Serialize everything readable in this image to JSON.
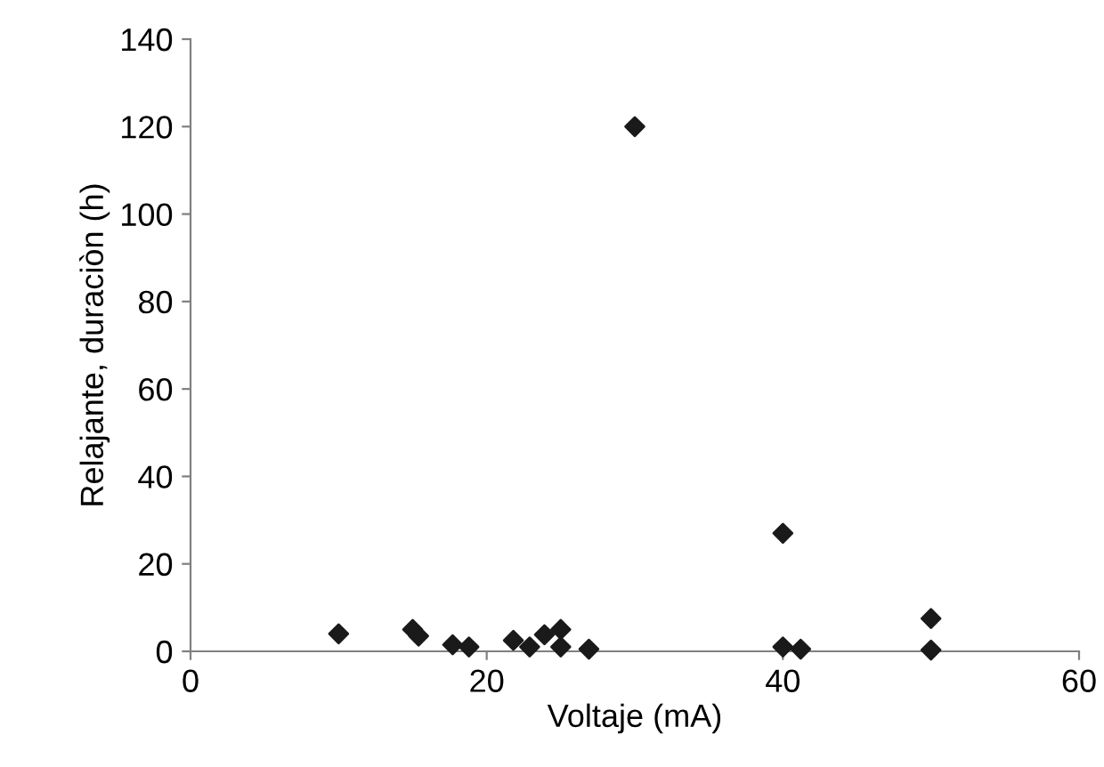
{
  "chart_data": {
    "type": "scatter",
    "xlabel": "Voltaje (mA)",
    "ylabel": "Relajante, duraciòn (h)",
    "x": [
      10,
      15,
      15.4,
      17.7,
      18.8,
      21.8,
      22.9,
      23.9,
      25,
      25,
      26.9,
      30,
      40,
      40,
      41.2,
      50,
      50
    ],
    "series": [
      {
        "color": "#1a1a1a",
        "values": [
          4,
          5,
          3.5,
          1.5,
          1,
          2.5,
          1,
          3.8,
          5,
          1,
          0.5,
          120,
          27,
          1,
          0.5,
          7.5,
          0.3
        ]
      }
    ],
    "xlim": [
      0,
      60
    ],
    "xticks": [
      0,
      20,
      40,
      60
    ],
    "ylim": [
      0,
      140
    ],
    "yticks": [
      0,
      20,
      40,
      60,
      80,
      100,
      120,
      140
    ],
    "grid": false,
    "legend": false,
    "marker": "diamond"
  }
}
